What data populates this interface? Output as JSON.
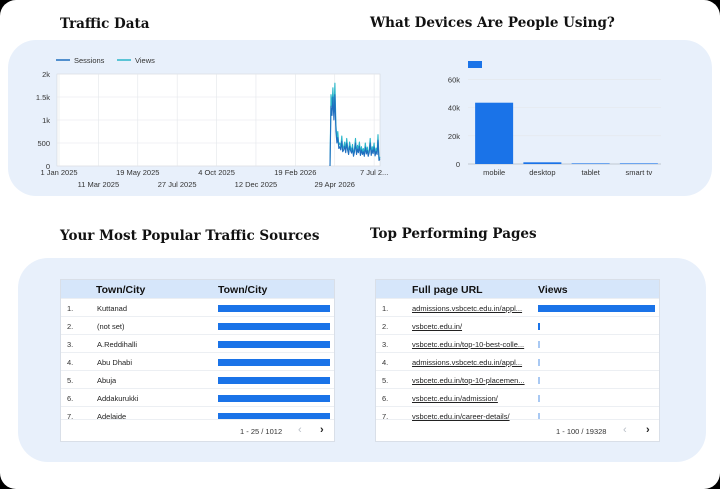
{
  "colors": {
    "accent": "#1a73e8",
    "sessions": "#1f6fbf",
    "views": "#2ab6c9",
    "panel": "#e8f0fb",
    "header": "#d6e6fa"
  },
  "headings": {
    "traffic": "Traffic Data",
    "devices": "What Devices Are People Using?",
    "sources": "Your Most Popular Traffic Sources",
    "pages": "Top Performing Pages"
  },
  "traffic_chart": {
    "chart_data": {
      "type": "line",
      "title": "",
      "legend": [
        "Sessions",
        "Views"
      ],
      "legend_placement": "top-left",
      "y_ticks": [
        "0",
        "500",
        "1k",
        "1.5k",
        "2k"
      ],
      "ylim": [
        0,
        2000
      ],
      "x_ticks_top": [
        "1 Jan 2025",
        "19 May 2025",
        "4 Oct 2025",
        "19 Feb 2026",
        "7 Jul 2..."
      ],
      "x_ticks_bottom": [
        "11 Mar 2025",
        "27 Jul 2025",
        "12 Dec 2025",
        "29 Apr 2026"
      ],
      "grid": true,
      "series": [
        {
          "name": "Views",
          "x_start": "2026-03-22",
          "values": [
            0,
            1550,
            1300,
            1700,
            1200,
            1800,
            900,
            600,
            750,
            450,
            500,
            420,
            650,
            380,
            420,
            520,
            350,
            600,
            420,
            300,
            520,
            400,
            330,
            470,
            250,
            380,
            600,
            300,
            450,
            350,
            520,
            280,
            420,
            300,
            380,
            250,
            500,
            320,
            410,
            250,
            350,
            600,
            280,
            420,
            330,
            500,
            260,
            390,
            300,
            680,
            150,
            200
          ]
        },
        {
          "name": "Sessions",
          "x_start": "2026-03-22",
          "values": [
            0,
            1300,
            1100,
            1500,
            1000,
            1550,
            750,
            500,
            620,
            380,
            420,
            350,
            540,
            310,
            350,
            430,
            290,
            500,
            350,
            250,
            430,
            330,
            280,
            390,
            210,
            310,
            500,
            250,
            370,
            290,
            430,
            230,
            350,
            250,
            310,
            210,
            410,
            260,
            340,
            210,
            290,
            500,
            230,
            350,
            270,
            410,
            220,
            320,
            250,
            560,
            120,
            160
          ]
        }
      ]
    }
  },
  "devices_chart": {
    "chart_data": {
      "type": "bar",
      "title": "",
      "categories": [
        "mobile",
        "desktop",
        "tablet",
        "smart tv"
      ],
      "values": [
        43500,
        1200,
        120,
        30
      ],
      "y_ticks": [
        "0",
        "20k",
        "40k",
        "60k"
      ],
      "ylim": [
        0,
        66000
      ],
      "grid": true,
      "legend_placement": "top-left"
    }
  },
  "sources_table": {
    "columns": [
      "Town/City",
      "Town/City"
    ],
    "rows": [
      {
        "idx": "1.",
        "name": "Kuttanad",
        "value": 1.0
      },
      {
        "idx": "2.",
        "name": "(not set)",
        "value": 1.0
      },
      {
        "idx": "3.",
        "name": "A.Reddihalli",
        "value": 1.0
      },
      {
        "idx": "4.",
        "name": "Abu Dhabi",
        "value": 1.0
      },
      {
        "idx": "5.",
        "name": "Abuja",
        "value": 1.0
      },
      {
        "idx": "6.",
        "name": "Addakurukki",
        "value": 1.0
      },
      {
        "idx": "7.",
        "name": "Adelaide",
        "value": 1.0
      }
    ],
    "pager": "1 - 25 / 1012",
    "prev": "‹",
    "next": "›"
  },
  "pages_table": {
    "columns": [
      "Full page URL",
      "Views"
    ],
    "rows": [
      {
        "idx": "1.",
        "url": "admissions.vsbcetc.edu.in/appl...",
        "value": 1.0
      },
      {
        "idx": "2.",
        "url": "vsbcetc.edu.in/",
        "value": 0.02
      },
      {
        "idx": "3.",
        "url": "vsbcetc.edu.in/top-10-best-colle...",
        "value": 0.01
      },
      {
        "idx": "4.",
        "url": "admissions.vsbcetc.edu.in/appl...",
        "value": 0.01
      },
      {
        "idx": "5.",
        "url": "vsbcetc.edu.in/top-10-placemen...",
        "value": 0.01
      },
      {
        "idx": "6.",
        "url": "vsbcetc.edu.in/admission/",
        "value": 0.01
      },
      {
        "idx": "7.",
        "url": "vsbcetc.edu.in/career-details/",
        "value": 0.01
      }
    ],
    "pager": "1 - 100 / 19328",
    "prev": "‹",
    "next": "›"
  }
}
